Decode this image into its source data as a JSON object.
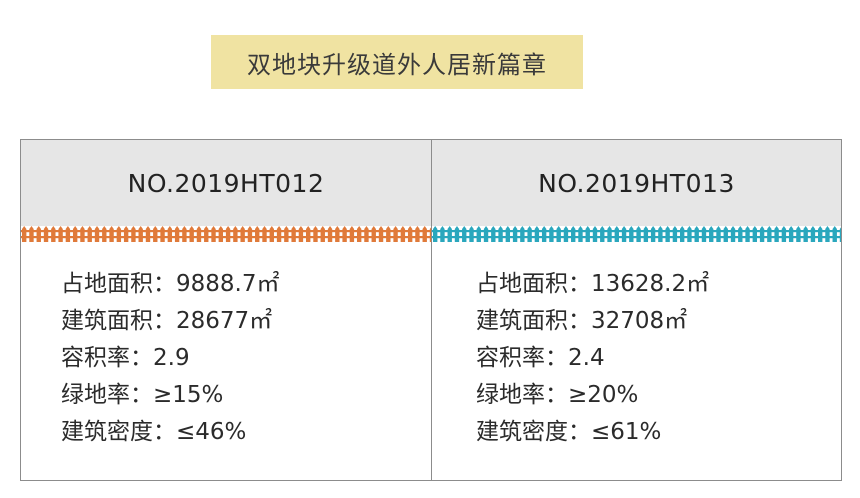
{
  "title": "双地块升级道外人居新篇章",
  "colors": {
    "banner": "#f0e3a2",
    "header_bg": "#e6e6e6",
    "fence_left": "#e07a3a",
    "fence_right": "#2aa7bd",
    "border": "#8c8c8c"
  },
  "columns": [
    {
      "code": "NO.2019HT012",
      "stats": [
        "占地面积：9888.7㎡",
        "建筑面积：28677㎡",
        "容积率：2.9",
        "绿地率：≥15%",
        "建筑密度：≤46%"
      ]
    },
    {
      "code": "NO.2019HT013",
      "stats": [
        "占地面积：13628.2㎡",
        "建筑面积：32708㎡",
        "容积率：2.4",
        "绿地率：≥20%",
        "建筑密度：≤61%"
      ]
    }
  ]
}
